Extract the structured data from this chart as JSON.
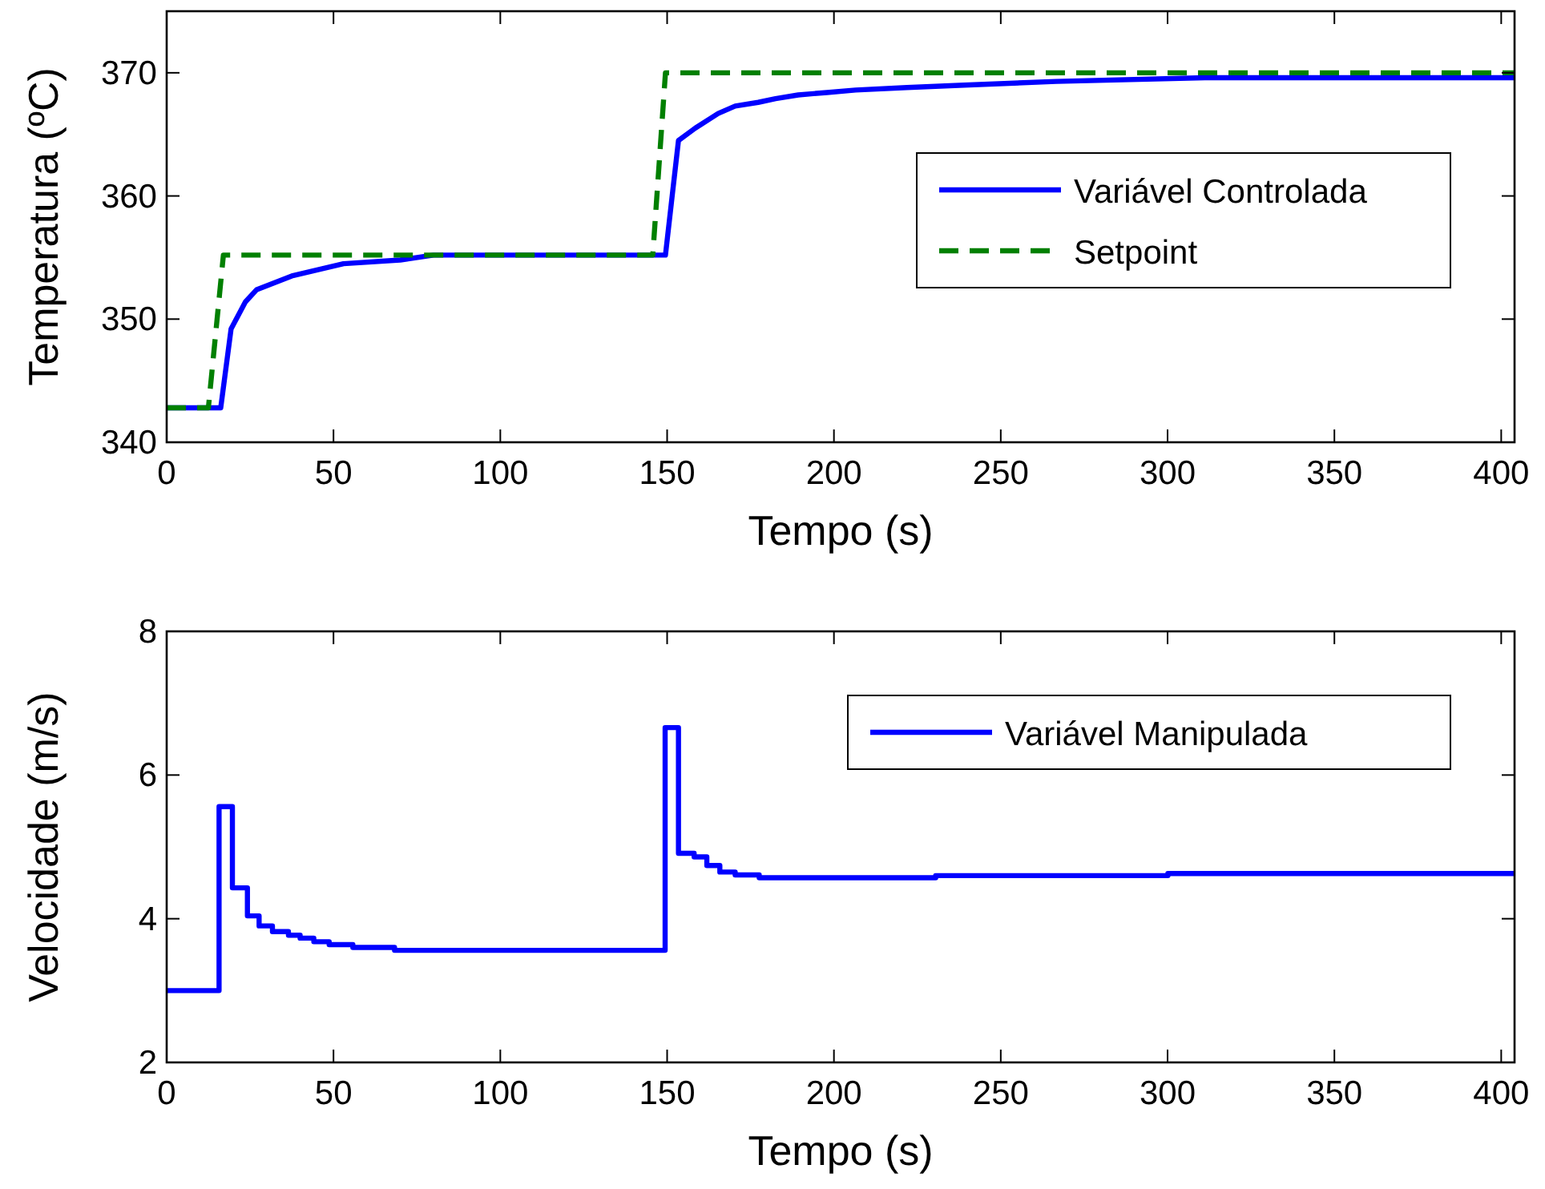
{
  "chart_data": [
    {
      "type": "line",
      "xlabel": "Tempo (s)",
      "ylabel": "Temperatura (ºC)",
      "xlim": [
        0,
        404
      ],
      "ylim": [
        340,
        375
      ],
      "xticks": [
        0,
        50,
        100,
        150,
        200,
        250,
        300,
        350,
        400
      ],
      "yticks": [
        340,
        350,
        360,
        370
      ],
      "grid": false,
      "legend": "right",
      "series": [
        {
          "name": "Variável Controlada",
          "color": "#0000ff",
          "line_style": "solid",
          "x": [
            0,
            16.2,
            19.3,
            23.6,
            27,
            37.5,
            53,
            70,
            80,
            149.5,
            153.4,
            158.4,
            165.3,
            170.4,
            177.3,
            182.5,
            189.3,
            197.9,
            206.5,
            221.9,
            239,
            266.6,
            311.2,
            404
          ],
          "values": [
            342.8,
            342.8,
            349.2,
            351.4,
            352.4,
            353.5,
            354.5,
            354.8,
            355.2,
            355.2,
            364.5,
            365.5,
            366.7,
            367.3,
            367.6,
            367.9,
            368.2,
            368.4,
            368.6,
            368.8,
            369,
            369.3,
            369.6,
            369.6
          ]
        },
        {
          "name": "Setpoint",
          "color": "#008000",
          "line_style": "dashed",
          "x": [
            0,
            12.5,
            17,
            145.7,
            149.5,
            404
          ],
          "values": [
            342.8,
            342.8,
            355.2,
            355.2,
            370,
            370
          ]
        }
      ]
    },
    {
      "type": "step",
      "xlabel": "Tempo (s)",
      "ylabel": "Velocidade (m/s)",
      "xlim": [
        0,
        404
      ],
      "ylim": [
        2,
        8
      ],
      "xticks": [
        0,
        50,
        100,
        150,
        200,
        250,
        300,
        350,
        400
      ],
      "yticks": [
        2,
        4,
        6,
        8
      ],
      "grid": false,
      "legend": "top right",
      "series": [
        {
          "name": "Variável Manipulada",
          "color": "#0000ff",
          "line_style": "solid",
          "x": [
            0,
            15.7,
            19.7,
            24.2,
            27.7,
            31.7,
            36.5,
            40,
            44.1,
            48.7,
            55.8,
            68.3,
            149.4,
            153.4,
            158.1,
            161.9,
            165.8,
            170.4,
            177.6,
            230.5,
            300.1,
            404
          ],
          "values": [
            3.0,
            5.56,
            4.43,
            4.04,
            3.9,
            3.82,
            3.77,
            3.73,
            3.68,
            3.64,
            3.6,
            3.56,
            6.66,
            4.91,
            4.86,
            4.74,
            4.65,
            4.61,
            4.57,
            4.6,
            4.63,
            4.63
          ]
        }
      ]
    }
  ]
}
